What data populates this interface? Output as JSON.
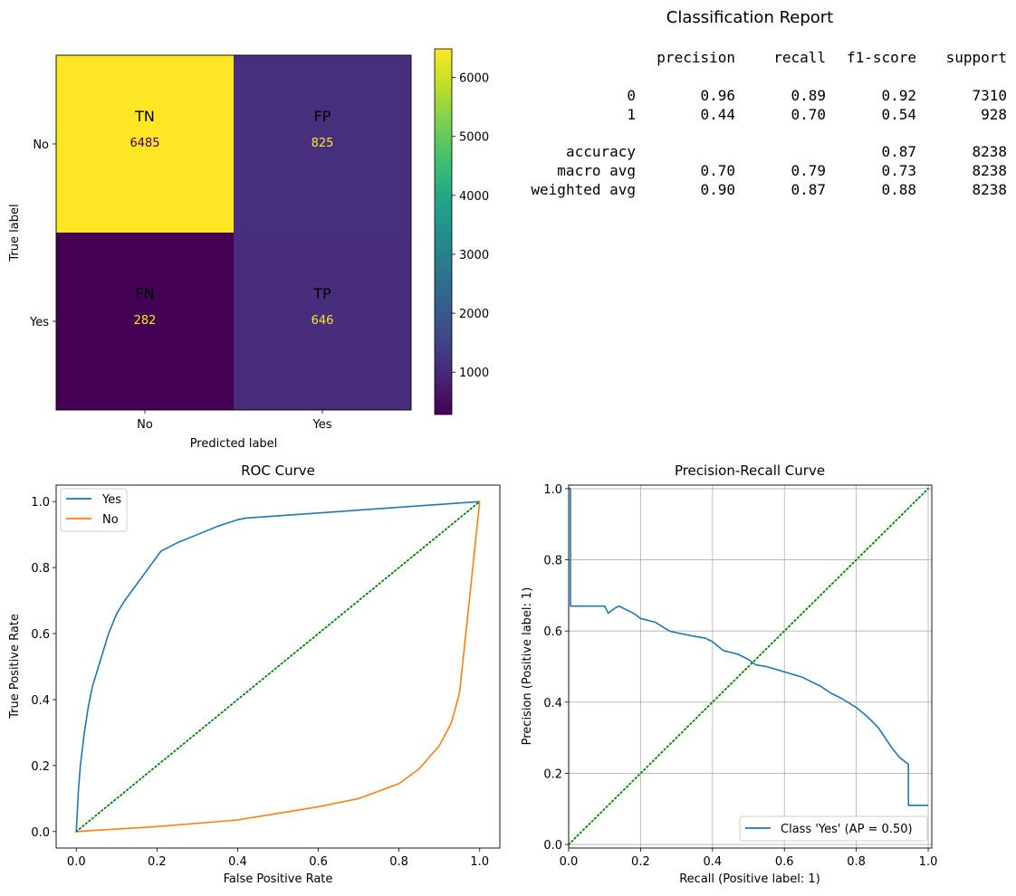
{
  "chart_data": [
    {
      "type": "heatmap",
      "title": "",
      "xlabel": "Predicted label",
      "ylabel": "True label",
      "x_categories": [
        "No",
        "Yes"
      ],
      "y_categories": [
        "No",
        "Yes"
      ],
      "cells": [
        {
          "row": 0,
          "col": 0,
          "code": "TN",
          "value": "6485",
          "color": "#fde725",
          "label_color": "#440154"
        },
        {
          "row": 0,
          "col": 1,
          "code": "FP",
          "value": "825",
          "color": "#46307e",
          "label_color": "#fde725"
        },
        {
          "row": 1,
          "col": 0,
          "code": "FN",
          "value": "282",
          "color": "#440154",
          "label_color": "#fde725"
        },
        {
          "row": 1,
          "col": 1,
          "code": "TP",
          "value": "646",
          "color": "#472d7b",
          "label_color": "#fde725"
        }
      ],
      "colorbar": {
        "colormap": "viridis",
        "range": [
          282,
          6485
        ],
        "ticks": [
          "1000",
          "2000",
          "3000",
          "4000",
          "5000",
          "6000"
        ],
        "tick_values": [
          1000,
          2000,
          3000,
          4000,
          5000,
          6000
        ]
      }
    },
    {
      "type": "table",
      "title": "Classification Report",
      "columns": [
        "precision",
        "recall",
        "f1-score",
        "support"
      ],
      "rows": [
        {
          "label": "0",
          "cells": [
            "0.96",
            "0.89",
            "0.92",
            "7310"
          ]
        },
        {
          "label": "1",
          "cells": [
            "0.44",
            "0.70",
            "0.54",
            "928"
          ]
        },
        {
          "label": "accuracy",
          "cells": [
            "",
            "",
            "0.87",
            "8238"
          ]
        },
        {
          "label": "macro avg",
          "cells": [
            "0.70",
            "0.79",
            "0.73",
            "8238"
          ]
        },
        {
          "label": "weighted avg",
          "cells": [
            "0.90",
            "0.87",
            "0.88",
            "8238"
          ]
        }
      ]
    },
    {
      "type": "line",
      "title": "ROC Curve",
      "xlabel": "False Positive Rate",
      "ylabel": "True Positive Rate",
      "xlim": [
        -0.05,
        1.05
      ],
      "ylim": [
        -0.05,
        1.05
      ],
      "xticks": [
        "0.0",
        "0.2",
        "0.4",
        "0.6",
        "0.8",
        "1.0"
      ],
      "xtick_values": [
        0,
        0.2,
        0.4,
        0.6,
        0.8,
        1.0
      ],
      "yticks": [
        "0.0",
        "0.2",
        "0.4",
        "0.6",
        "0.8",
        "1.0"
      ],
      "ytick_values": [
        0,
        0.2,
        0.4,
        0.6,
        0.8,
        1.0
      ],
      "grid": false,
      "legend_position": "top-left",
      "series": [
        {
          "name": "Yes",
          "color": "#1f77b4",
          "points": [
            [
              0,
              0
            ],
            [
              0.005,
              0.12
            ],
            [
              0.01,
              0.2
            ],
            [
              0.02,
              0.3
            ],
            [
              0.03,
              0.38
            ],
            [
              0.04,
              0.44
            ],
            [
              0.06,
              0.52
            ],
            [
              0.08,
              0.6
            ],
            [
              0.1,
              0.66
            ],
            [
              0.12,
              0.7
            ],
            [
              0.15,
              0.75
            ],
            [
              0.18,
              0.8
            ],
            [
              0.21,
              0.85
            ],
            [
              0.25,
              0.875
            ],
            [
              0.3,
              0.9
            ],
            [
              0.35,
              0.925
            ],
            [
              0.4,
              0.945
            ],
            [
              0.42,
              0.95
            ],
            [
              1.0,
              1.0
            ]
          ]
        },
        {
          "name": "No",
          "color": "#ff7f0e",
          "points": [
            [
              0,
              0
            ],
            [
              0.2,
              0.015
            ],
            [
              0.4,
              0.035
            ],
            [
              0.5,
              0.055
            ],
            [
              0.6,
              0.075
            ],
            [
              0.7,
              0.1
            ],
            [
              0.8,
              0.145
            ],
            [
              0.85,
              0.19
            ],
            [
              0.9,
              0.26
            ],
            [
              0.93,
              0.33
            ],
            [
              0.95,
              0.42
            ],
            [
              0.97,
              0.65
            ],
            [
              1.0,
              1.0
            ]
          ]
        },
        {
          "name": "",
          "color": "#008000",
          "dashed": true,
          "points": [
            [
              0,
              0
            ],
            [
              1,
              1
            ]
          ]
        }
      ]
    },
    {
      "type": "line",
      "title": "Precision-Recall Curve",
      "xlabel": "Recall (Positive label: 1)",
      "ylabel": "Precision (Positive label: 1)",
      "xlim": [
        0,
        1.01
      ],
      "ylim": [
        -0.01,
        1.01
      ],
      "xticks": [
        "0.0",
        "0.2",
        "0.4",
        "0.6",
        "0.8",
        "1.0"
      ],
      "xtick_values": [
        0,
        0.2,
        0.4,
        0.6,
        0.8,
        1.0
      ],
      "yticks": [
        "0.0",
        "0.2",
        "0.4",
        "0.6",
        "0.8",
        "1.0"
      ],
      "ytick_values": [
        0,
        0.2,
        0.4,
        0.6,
        0.8,
        1.0
      ],
      "grid": true,
      "legend_position": "bottom-right",
      "series": [
        {
          "name": "Class 'Yes' (AP = 0.50)",
          "color": "#1f77b4",
          "step": true,
          "points": [
            [
              0,
              1.0
            ],
            [
              0.005,
              1.0
            ],
            [
              0.005,
              0.67
            ],
            [
              0.1,
              0.67
            ],
            [
              0.11,
              0.65
            ],
            [
              0.13,
              0.665
            ],
            [
              0.14,
              0.67
            ],
            [
              0.16,
              0.66
            ],
            [
              0.18,
              0.65
            ],
            [
              0.2,
              0.635
            ],
            [
              0.24,
              0.625
            ],
            [
              0.28,
              0.6
            ],
            [
              0.3,
              0.595
            ],
            [
              0.35,
              0.585
            ],
            [
              0.38,
              0.58
            ],
            [
              0.4,
              0.57
            ],
            [
              0.43,
              0.545
            ],
            [
              0.47,
              0.535
            ],
            [
              0.5,
              0.52
            ],
            [
              0.52,
              0.505
            ],
            [
              0.55,
              0.5
            ],
            [
              0.6,
              0.485
            ],
            [
              0.65,
              0.47
            ],
            [
              0.7,
              0.445
            ],
            [
              0.73,
              0.425
            ],
            [
              0.76,
              0.41
            ],
            [
              0.8,
              0.385
            ],
            [
              0.83,
              0.36
            ],
            [
              0.86,
              0.33
            ],
            [
              0.88,
              0.3
            ],
            [
              0.9,
              0.27
            ],
            [
              0.92,
              0.245
            ],
            [
              0.945,
              0.225
            ],
            [
              0.945,
              0.11
            ],
            [
              1.0,
              0.11
            ]
          ]
        },
        {
          "name": "",
          "color": "#008000",
          "dashed": true,
          "points": [
            [
              0,
              0
            ],
            [
              1,
              1
            ]
          ]
        }
      ]
    }
  ]
}
